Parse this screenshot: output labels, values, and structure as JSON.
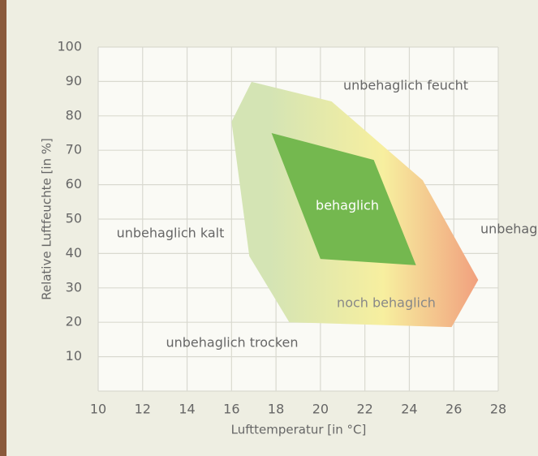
{
  "chart_data": {
    "type": "region",
    "x_label": "Lufttemperatur [in °C]",
    "y_label": "Relative Luftfeuchte [in %]",
    "xlim": [
      10,
      28
    ],
    "xticks": [
      10,
      12,
      14,
      16,
      18,
      20,
      22,
      24,
      26,
      28
    ],
    "ylim": [
      0,
      100
    ],
    "yticks": [
      10,
      20,
      30,
      40,
      50,
      60,
      70,
      80,
      90,
      100
    ],
    "grid": true,
    "regions": [
      {
        "label": "noch behaglich",
        "colors": [
          "#d4e4b4",
          "#f7ef9f",
          "#f1a07e"
        ],
        "x": [
          16.0,
          16.9,
          20.5,
          24.6,
          27.1,
          25.9,
          18.6,
          16.8
        ],
        "y": [
          78.3,
          89.9,
          84.2,
          61.3,
          32.3,
          18.6,
          20,
          39.2
        ]
      },
      {
        "label": "behaglich",
        "colors": [
          "#74b84f"
        ],
        "x": [
          17.8,
          22.4,
          24.3,
          20.0
        ],
        "y": [
          75,
          67.2,
          36.6,
          38.4
        ]
      }
    ],
    "annotations": [
      "unbehaglich feucht",
      "unbehaglich kalt",
      "unbehaglich warm",
      "unbehaglich trocken"
    ]
  }
}
